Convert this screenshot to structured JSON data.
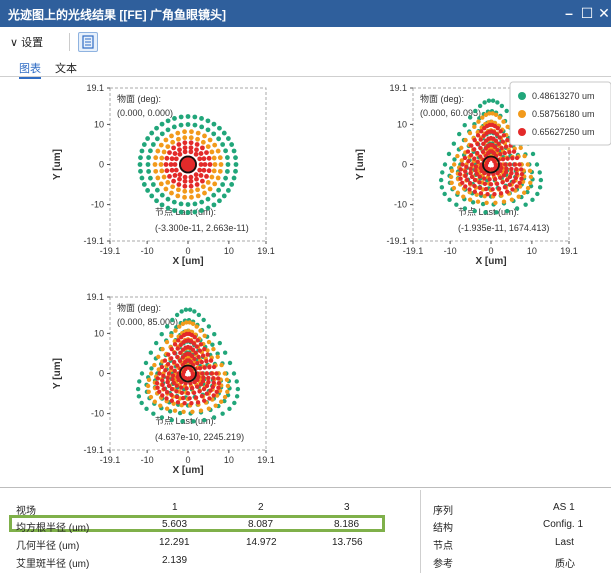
{
  "window": {
    "title": "光迹图上的光线结果 [[FE] 广角鱼眼镜头]",
    "minimize": "–",
    "maximize": "☐",
    "close": "✕"
  },
  "toolbar": {
    "settings_label": "∨ 设置",
    "list_icon": "list-icon"
  },
  "tabs": [
    {
      "label": "图表",
      "active": true
    },
    {
      "label": "文本",
      "active": false
    }
  ],
  "plot_common": {
    "xlabel": "X [um]",
    "ylabel": "Y [um]",
    "xticks": [
      "-19.1",
      "-10",
      "0",
      "10",
      "19.1"
    ],
    "yticks": [
      "19.1",
      "10",
      "0",
      "-10",
      "-19.1"
    ],
    "field_title": "物面 (deg):",
    "node_title": "节点 Last (um):"
  },
  "legend": [
    {
      "label": "0.48613270 um",
      "color": "#21a67a"
    },
    {
      "label": "0.58756180 um",
      "color": "#f29a1b"
    },
    {
      "label": "0.65627250 um",
      "color": "#e32a2a"
    }
  ],
  "plots": [
    {
      "field_value": "(0.000, 0.000)",
      "node_value": "(-3.300e-11, 2.663e-11)"
    },
    {
      "field_value": "(0.000, 60.095)",
      "node_value": "(-1.935e-11, 1674.413)"
    },
    {
      "field_value": "(0.000, 85.000)",
      "node_value": "(4.637e-10, 2245.219)"
    }
  ],
  "table": {
    "rows": [
      {
        "label": "视场",
        "values": [
          "1",
          "2",
          "3"
        ]
      },
      {
        "label": "均方根半径 (um)",
        "values": [
          "5.603",
          "8.087",
          "8.186"
        ]
      },
      {
        "label": "几何半径 (um)",
        "values": [
          "12.291",
          "14.972",
          "13.756"
        ]
      },
      {
        "label": "艾里斑半径 (um)",
        "values": [
          "2.139",
          "",
          ""
        ]
      }
    ],
    "props": [
      {
        "label": "序列",
        "value": "AS 1"
      },
      {
        "label": "结构",
        "value": "Config. 1"
      },
      {
        "label": "节点",
        "value": "Last"
      },
      {
        "label": "参考",
        "value": "质心"
      }
    ]
  },
  "colors": {
    "title_bg": "#2f5f9c",
    "green": "#21a67a",
    "orange": "#f29a1b",
    "red": "#e32a2a",
    "highlight": "#7fb04a"
  }
}
